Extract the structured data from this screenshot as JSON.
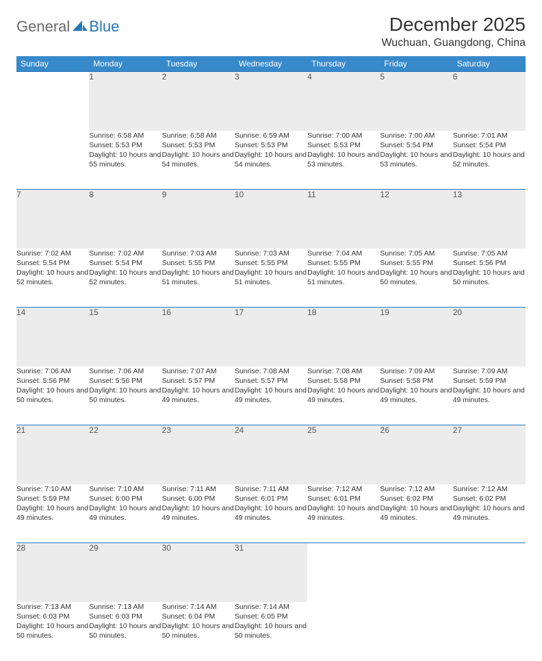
{
  "brand": {
    "part1": "General",
    "part2": "Blue",
    "logo_fill": "#2676bb"
  },
  "header": {
    "title": "December 2025",
    "location": "Wuchuan, Guangdong, China"
  },
  "columns": [
    "Sunday",
    "Monday",
    "Tuesday",
    "Wednesday",
    "Thursday",
    "Friday",
    "Saturday"
  ],
  "colors": {
    "header_bg": "#3789ca",
    "header_text": "#ffffff",
    "daynum_bg": "#ececec",
    "week_divider": "#2676bb",
    "text": "#333333"
  },
  "weeks": [
    [
      null,
      {
        "n": "1",
        "sunrise": "6:58 AM",
        "sunset": "5:53 PM",
        "daylight": "10 hours and 55 minutes."
      },
      {
        "n": "2",
        "sunrise": "6:58 AM",
        "sunset": "5:53 PM",
        "daylight": "10 hours and 54 minutes."
      },
      {
        "n": "3",
        "sunrise": "6:59 AM",
        "sunset": "5:53 PM",
        "daylight": "10 hours and 54 minutes."
      },
      {
        "n": "4",
        "sunrise": "7:00 AM",
        "sunset": "5:53 PM",
        "daylight": "10 hours and 53 minutes."
      },
      {
        "n": "5",
        "sunrise": "7:00 AM",
        "sunset": "5:54 PM",
        "daylight": "10 hours and 53 minutes."
      },
      {
        "n": "6",
        "sunrise": "7:01 AM",
        "sunset": "5:54 PM",
        "daylight": "10 hours and 52 minutes."
      }
    ],
    [
      {
        "n": "7",
        "sunrise": "7:02 AM",
        "sunset": "5:54 PM",
        "daylight": "10 hours and 52 minutes."
      },
      {
        "n": "8",
        "sunrise": "7:02 AM",
        "sunset": "5:54 PM",
        "daylight": "10 hours and 52 minutes."
      },
      {
        "n": "9",
        "sunrise": "7:03 AM",
        "sunset": "5:55 PM",
        "daylight": "10 hours and 51 minutes."
      },
      {
        "n": "10",
        "sunrise": "7:03 AM",
        "sunset": "5:55 PM",
        "daylight": "10 hours and 51 minutes."
      },
      {
        "n": "11",
        "sunrise": "7:04 AM",
        "sunset": "5:55 PM",
        "daylight": "10 hours and 51 minutes."
      },
      {
        "n": "12",
        "sunrise": "7:05 AM",
        "sunset": "5:55 PM",
        "daylight": "10 hours and 50 minutes."
      },
      {
        "n": "13",
        "sunrise": "7:05 AM",
        "sunset": "5:56 PM",
        "daylight": "10 hours and 50 minutes."
      }
    ],
    [
      {
        "n": "14",
        "sunrise": "7:06 AM",
        "sunset": "5:56 PM",
        "daylight": "10 hours and 50 minutes."
      },
      {
        "n": "15",
        "sunrise": "7:06 AM",
        "sunset": "5:56 PM",
        "daylight": "10 hours and 50 minutes."
      },
      {
        "n": "16",
        "sunrise": "7:07 AM",
        "sunset": "5:57 PM",
        "daylight": "10 hours and 49 minutes."
      },
      {
        "n": "17",
        "sunrise": "7:08 AM",
        "sunset": "5:57 PM",
        "daylight": "10 hours and 49 minutes."
      },
      {
        "n": "18",
        "sunrise": "7:08 AM",
        "sunset": "5:58 PM",
        "daylight": "10 hours and 49 minutes."
      },
      {
        "n": "19",
        "sunrise": "7:09 AM",
        "sunset": "5:58 PM",
        "daylight": "10 hours and 49 minutes."
      },
      {
        "n": "20",
        "sunrise": "7:09 AM",
        "sunset": "5:59 PM",
        "daylight": "10 hours and 49 minutes."
      }
    ],
    [
      {
        "n": "21",
        "sunrise": "7:10 AM",
        "sunset": "5:59 PM",
        "daylight": "10 hours and 49 minutes."
      },
      {
        "n": "22",
        "sunrise": "7:10 AM",
        "sunset": "6:00 PM",
        "daylight": "10 hours and 49 minutes."
      },
      {
        "n": "23",
        "sunrise": "7:11 AM",
        "sunset": "6:00 PM",
        "daylight": "10 hours and 49 minutes."
      },
      {
        "n": "24",
        "sunrise": "7:11 AM",
        "sunset": "6:01 PM",
        "daylight": "10 hours and 49 minutes."
      },
      {
        "n": "25",
        "sunrise": "7:12 AM",
        "sunset": "6:01 PM",
        "daylight": "10 hours and 49 minutes."
      },
      {
        "n": "26",
        "sunrise": "7:12 AM",
        "sunset": "6:02 PM",
        "daylight": "10 hours and 49 minutes."
      },
      {
        "n": "27",
        "sunrise": "7:12 AM",
        "sunset": "6:02 PM",
        "daylight": "10 hours and 49 minutes."
      }
    ],
    [
      {
        "n": "28",
        "sunrise": "7:13 AM",
        "sunset": "6:03 PM",
        "daylight": "10 hours and 50 minutes."
      },
      {
        "n": "29",
        "sunrise": "7:13 AM",
        "sunset": "6:03 PM",
        "daylight": "10 hours and 50 minutes."
      },
      {
        "n": "30",
        "sunrise": "7:14 AM",
        "sunset": "6:04 PM",
        "daylight": "10 hours and 50 minutes."
      },
      {
        "n": "31",
        "sunrise": "7:14 AM",
        "sunset": "6:05 PM",
        "daylight": "10 hours and 50 minutes."
      },
      null,
      null,
      null
    ]
  ],
  "labels": {
    "sunrise": "Sunrise:",
    "sunset": "Sunset:",
    "daylight": "Daylight:"
  }
}
